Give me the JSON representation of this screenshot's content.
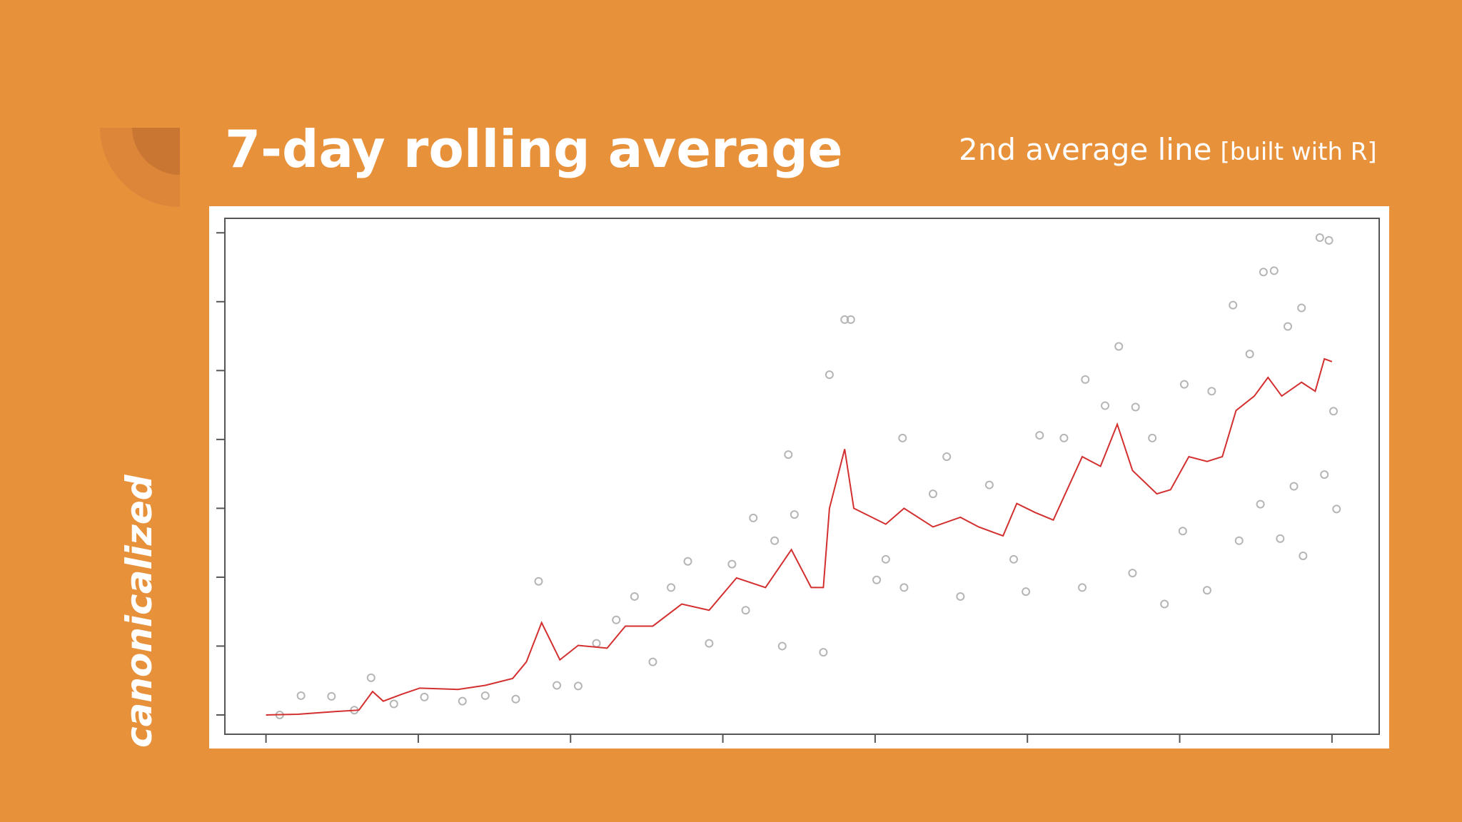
{
  "header": {
    "title": "7-day rolling average",
    "subtitle": "2nd average line",
    "note": "[built with R]"
  },
  "brand": "canonicalized",
  "chart_data": {
    "type": "scatter",
    "xlim": [
      -0.27,
      7.31
    ],
    "ylim": [
      -0.28,
      7.21
    ],
    "xticks": [
      0,
      1,
      2,
      3,
      4,
      5,
      6,
      7
    ],
    "yticks": [
      0,
      1,
      2,
      3,
      4,
      5,
      6,
      7
    ],
    "series": [
      {
        "type": "scatter",
        "color": "#b5b5b5",
        "x": [
          3.8,
          3.84,
          3.7,
          3.43,
          1.79,
          6.92,
          6.98,
          6.55,
          6.62,
          6.35,
          6.8,
          5.6,
          5.38,
          6.03,
          7.01,
          6.95,
          7.03,
          6.81,
          5.9,
          6.18,
          5.69,
          5.36,
          4.99,
          4.56,
          4.19,
          4.01,
          3.66,
          3.39,
          3.15,
          2.91,
          2.54,
          2.17,
          2.05,
          1.91,
          1.64,
          1.44,
          1.29,
          1.04,
          0.84,
          0.69,
          0.58,
          0.43,
          0.23,
          0.09,
          2.77,
          3.2,
          3.47,
          4.18,
          4.47,
          5.08,
          5.24,
          5.51,
          5.71,
          6.02,
          6.39,
          6.53,
          6.66,
          6.75,
          4.75,
          4.38,
          4.07,
          4.91,
          2.42,
          2.3,
          2.66,
          3.06,
          3.34,
          5.82,
          6.21,
          6.46,
          6.71
        ],
        "values": [
          5.74,
          5.74,
          4.94,
          3.78,
          1.94,
          6.93,
          6.89,
          6.43,
          6.45,
          5.95,
          5.91,
          5.35,
          4.87,
          4.8,
          4.41,
          3.49,
          2.99,
          2.31,
          1.61,
          1.81,
          2.06,
          1.85,
          1.79,
          1.72,
          1.85,
          1.96,
          0.91,
          1.0,
          1.52,
          1.04,
          0.77,
          1.04,
          0.42,
          0.43,
          0.23,
          0.28,
          0.2,
          0.26,
          0.16,
          0.54,
          0.07,
          0.27,
          0.28,
          0,
          2.23,
          2.86,
          2.91,
          4.02,
          3.75,
          4.06,
          4.02,
          4.49,
          4.47,
          2.67,
          2.53,
          3.06,
          2.56,
          3.32,
          3.34,
          3.21,
          2.26,
          2.26,
          1.72,
          1.38,
          1.85,
          2.19,
          2.53,
          4.02,
          4.7,
          5.24,
          5.64
        ]
      },
      {
        "type": "line",
        "color": "#d32f2f",
        "x": [
          0,
          0.21,
          0.46,
          0.61,
          0.7,
          0.77,
          0.89,
          1.01,
          1.26,
          1.44,
          1.62,
          1.71,
          1.81,
          1.93,
          2.05,
          2.24,
          2.36,
          2.54,
          2.73,
          2.91,
          3.09,
          3.28,
          3.45,
          3.58,
          3.66,
          3.7,
          3.8,
          3.86,
          4.07,
          4.19,
          4.38,
          4.56,
          4.68,
          4.84,
          4.93,
          5.05,
          5.17,
          5.36,
          5.48,
          5.59,
          5.69,
          5.85,
          5.94,
          6.06,
          6.18,
          6.28,
          6.37,
          6.49,
          6.58,
          6.67,
          6.8,
          6.89,
          6.95,
          7.0
        ],
        "values": [
          0,
          0.01,
          0.05,
          0.07,
          0.34,
          0.2,
          0.3,
          0.39,
          0.37,
          0.43,
          0.53,
          0.77,
          1.34,
          0.8,
          1.01,
          0.97,
          1.29,
          1.29,
          1.61,
          1.52,
          1.99,
          1.85,
          2.4,
          1.85,
          1.85,
          3.0,
          3.86,
          3.0,
          2.77,
          3.0,
          2.73,
          2.87,
          2.73,
          2.6,
          3.07,
          2.94,
          2.83,
          3.75,
          3.61,
          4.22,
          3.55,
          3.21,
          3.27,
          3.75,
          3.68,
          3.75,
          4.42,
          4.63,
          4.9,
          4.63,
          4.83,
          4.7,
          5.17,
          5.13
        ]
      }
    ]
  }
}
